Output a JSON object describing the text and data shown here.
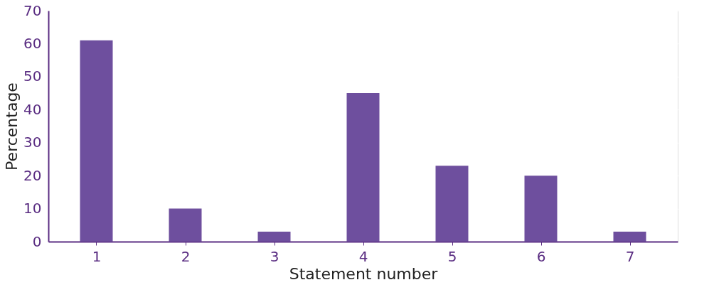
{
  "chart_data": {
    "type": "bar",
    "xlabel": "Statement number",
    "ylabel": "Percentage",
    "categories": [
      "1",
      "2",
      "3",
      "4",
      "5",
      "6",
      "7"
    ],
    "values": [
      61,
      10,
      3,
      45,
      23,
      20,
      3
    ],
    "color": "#6e4f9e",
    "ylim": [
      0,
      70
    ],
    "yticks": [
      0,
      10,
      20,
      30,
      40,
      50,
      60,
      70
    ],
    "grid": "y"
  }
}
